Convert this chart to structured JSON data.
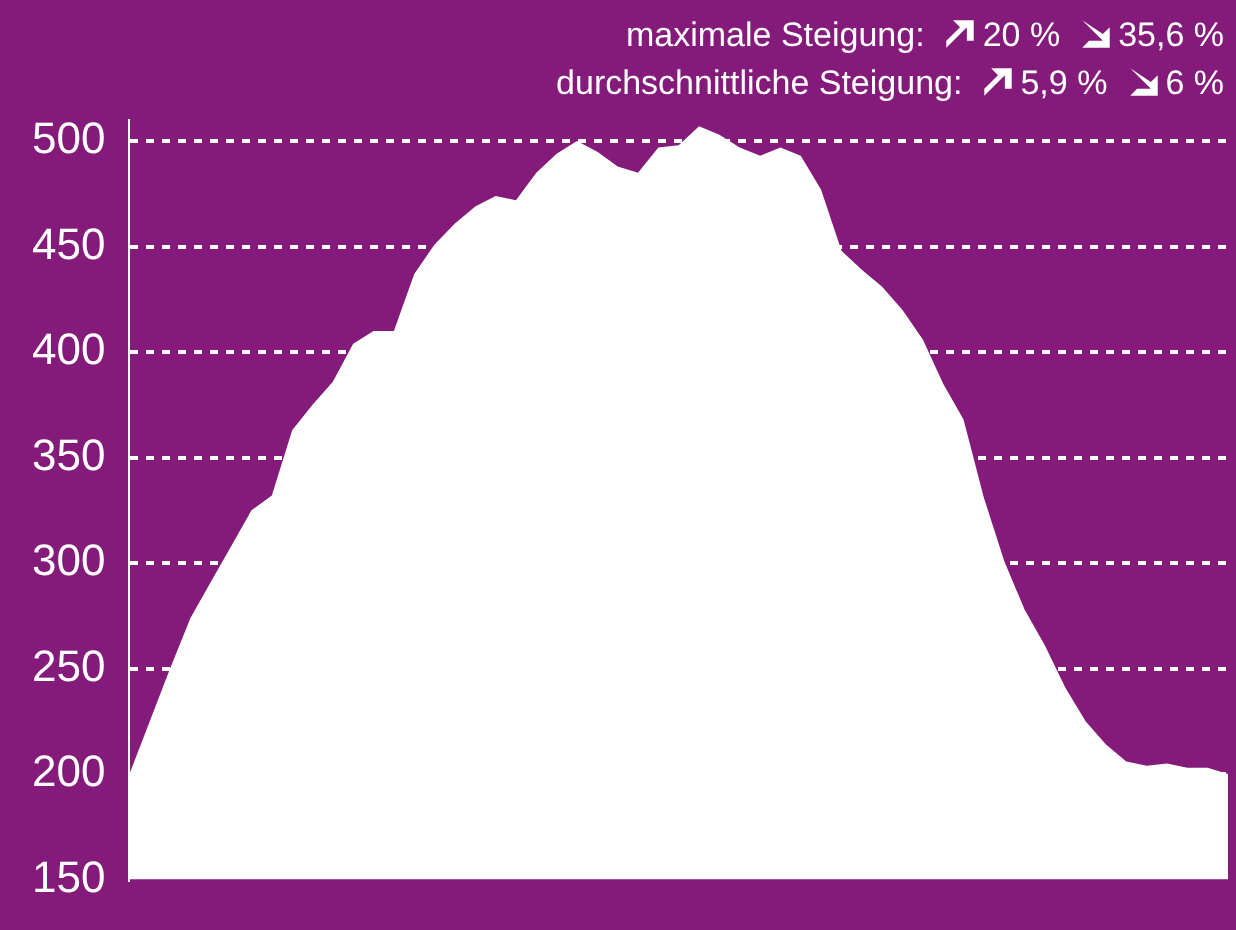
{
  "chart_data": {
    "type": "area",
    "color": "#ffffff",
    "categories": [
      null,
      null,
      null,
      null,
      null,
      null,
      null,
      null,
      null,
      null,
      null,
      null,
      null,
      null,
      null,
      null,
      null,
      null,
      null,
      null,
      null,
      null,
      null,
      null,
      null,
      null,
      null,
      null,
      null,
      null,
      null,
      null,
      null,
      null,
      null,
      null,
      null,
      null,
      null,
      null,
      null,
      null,
      null,
      null,
      null,
      null,
      null,
      null,
      null,
      null,
      null,
      null,
      null,
      null,
      null
    ],
    "values": [
      200,
      225,
      250,
      274,
      291,
      308,
      325,
      332,
      363,
      375,
      386,
      404,
      410,
      410,
      437,
      451,
      461,
      469,
      474,
      472,
      485,
      494,
      500,
      495,
      488,
      485,
      497,
      498,
      507,
      503,
      497,
      493,
      497,
      493,
      477,
      448,
      439,
      431,
      420,
      406,
      385,
      368,
      331,
      301,
      278,
      261,
      241,
      225,
      214,
      206,
      204,
      205,
      203,
      203,
      200
    ],
    "ylim": [
      150,
      510
    ],
    "yticks": [
      150,
      200,
      250,
      300,
      350,
      400,
      450,
      500
    ],
    "grid": "y",
    "annotations": [
      "maximale Steigung:",
      "20 %",
      "35,6 %",
      "durchschnittliche Steigung:",
      "5,9 %",
      "6 %"
    ]
  }
}
